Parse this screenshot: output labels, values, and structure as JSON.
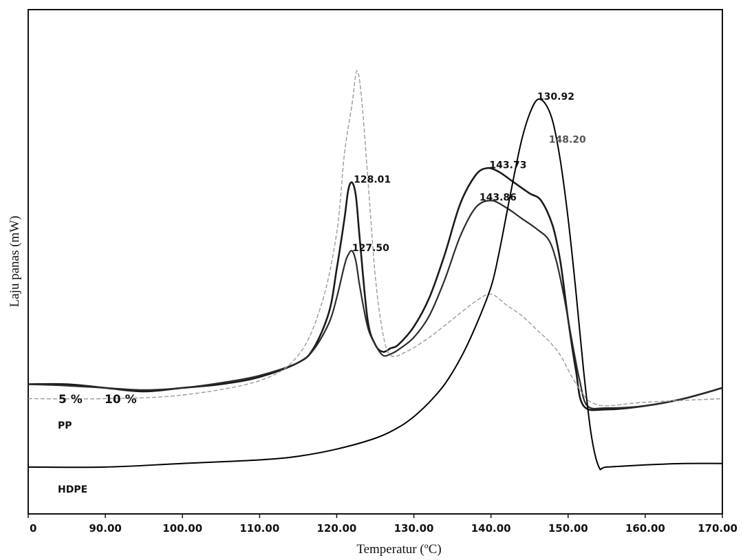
{
  "chart_data": {
    "type": "line",
    "xlabel": "Temperatur (",
    "xlabel_unit": "o",
    "xlabel_suffix": "C)",
    "ylabel": "Laju panas (mW)",
    "xlim": [
      80,
      170
    ],
    "x_ticks": [
      "0",
      "90.00",
      "100.00",
      "110.00",
      "120.00",
      "130.00",
      "140.00",
      "150.00",
      "160.00",
      "170.00"
    ],
    "x_tick_values": [
      80,
      90,
      100,
      110,
      120,
      130,
      140,
      150,
      160,
      170
    ],
    "grid": false,
    "legend_labels": [
      "5 %",
      "10 %",
      "PP",
      "HDPE"
    ],
    "annotations": [
      {
        "text": "128.01",
        "x": 122.2,
        "y": 3.1
      },
      {
        "text": "127.50",
        "x": 122.0,
        "y": 2.15
      },
      {
        "text": "143.73",
        "x": 139.8,
        "y": 3.3
      },
      {
        "text": "143.86",
        "x": 138.5,
        "y": 2.85
      },
      {
        "text": "130.92",
        "x": 146.0,
        "y": 4.25
      },
      {
        "text": "148.20",
        "x": 147.5,
        "y": 3.65
      }
    ],
    "series": [
      {
        "name": "5 %",
        "color": "#1a1a1a",
        "x": [
          80,
          85,
          90,
          95,
          100,
          105,
          110,
          115,
          117,
          119,
          120,
          121,
          121.5,
          122,
          122.5,
          123,
          124,
          125,
          126,
          127,
          128,
          130,
          132,
          134,
          136,
          138,
          139.5,
          141,
          143,
          145,
          146.5,
          148,
          149,
          150,
          151,
          152,
          155,
          160,
          165,
          170
        ],
        "y": [
          0.3,
          0.3,
          0.25,
          0.2,
          0.25,
          0.3,
          0.4,
          0.6,
          0.8,
          1.3,
          1.9,
          2.6,
          3.0,
          3.1,
          2.9,
          2.3,
          1.2,
          0.85,
          0.75,
          0.8,
          0.85,
          1.1,
          1.5,
          2.1,
          2.8,
          3.2,
          3.3,
          3.25,
          3.1,
          2.95,
          2.85,
          2.5,
          2.0,
          1.2,
          0.5,
          0.0,
          -0.05,
          0.0,
          0.1,
          0.25
        ]
      },
      {
        "name": "10 %",
        "color": "#2b2b2b",
        "x": [
          80,
          85,
          90,
          95,
          100,
          105,
          110,
          115,
          117,
          119,
          120,
          121,
          121.5,
          122,
          122.5,
          123,
          124,
          125,
          126,
          127,
          128,
          130,
          132,
          134,
          136,
          138,
          140,
          142,
          144,
          146,
          147.5,
          148.5,
          149.5,
          150.5,
          151.5,
          152.5,
          155,
          160,
          165,
          170
        ],
        "y": [
          0.3,
          0.28,
          0.25,
          0.22,
          0.25,
          0.32,
          0.42,
          0.6,
          0.78,
          1.15,
          1.5,
          1.95,
          2.1,
          2.15,
          2.0,
          1.65,
          1.1,
          0.85,
          0.7,
          0.72,
          0.78,
          0.95,
          1.25,
          1.75,
          2.35,
          2.75,
          2.85,
          2.75,
          2.6,
          2.45,
          2.3,
          2.0,
          1.5,
          0.9,
          0.35,
          0.0,
          -0.03,
          0.0,
          0.1,
          0.25
        ]
      },
      {
        "name": "PP",
        "color": "#9a9a9a",
        "x": [
          80,
          90,
          100,
          110,
          115,
          118,
          120,
          121,
          122,
          122.6,
          123.2,
          124,
          125,
          126,
          127,
          129,
          132,
          135,
          138,
          140,
          142,
          144,
          146,
          147.5,
          149,
          150.5,
          152,
          153,
          155,
          160,
          170
        ],
        "y": [
          0.1,
          0.1,
          0.15,
          0.35,
          0.7,
          1.4,
          2.4,
          3.5,
          4.2,
          4.65,
          4.3,
          3.2,
          1.8,
          1.0,
          0.7,
          0.75,
          0.95,
          1.2,
          1.45,
          1.55,
          1.4,
          1.25,
          1.05,
          0.9,
          0.7,
          0.4,
          0.15,
          0.05,
          0.0,
          0.05,
          0.1
        ]
      },
      {
        "name": "HDPE",
        "color": "#000000",
        "x": [
          80,
          90,
          100,
          110,
          115,
          120,
          125,
          128,
          130,
          132,
          134,
          136,
          138,
          140,
          141,
          142,
          143,
          144,
          145,
          146,
          147,
          148,
          149,
          150,
          151,
          152,
          153,
          154,
          155,
          160,
          165,
          170
        ],
        "y": [
          -0.85,
          -0.85,
          -0.8,
          -0.75,
          -0.7,
          -0.6,
          -0.45,
          -0.3,
          -0.15,
          0.05,
          0.3,
          0.65,
          1.1,
          1.65,
          2.1,
          2.65,
          3.2,
          3.7,
          4.05,
          4.25,
          4.2,
          3.95,
          3.4,
          2.6,
          1.6,
          0.5,
          -0.4,
          -0.85,
          -0.85,
          -0.82,
          -0.8,
          -0.8
        ]
      }
    ]
  }
}
